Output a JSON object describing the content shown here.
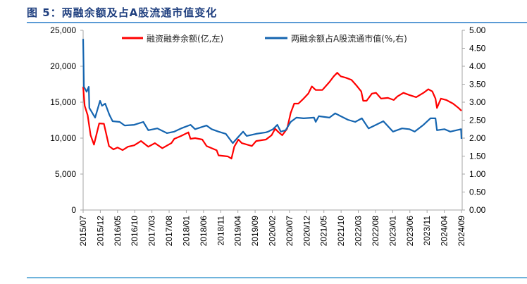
{
  "title": "图 5：两融余额及占A股流通市值变化",
  "colors": {
    "red": "#ff0000",
    "blue": "#1565b0",
    "title": "#1f3f7f",
    "axis": "#a6a6a6"
  },
  "chart_data": {
    "type": "line",
    "title": "图 5：两融余额及占A股流通市值变化",
    "xlabel": "",
    "x_range": [
      "2015-07-01",
      "2024-09-01"
    ],
    "x_ticks": [
      "2015/07",
      "2015/12",
      "2016/05",
      "2016/10",
      "2017/03",
      "2017/08",
      "2018/01",
      "2018/06",
      "2018/11",
      "2019/04",
      "2019/09",
      "2020/02",
      "2020/07",
      "2020/12",
      "2021/05",
      "2021/10",
      "2022/03",
      "2022/08",
      "2023/01",
      "2023/06",
      "2023/11",
      "2024/04",
      "2024/09"
    ],
    "y_left": {
      "ylim": [
        0,
        25000
      ],
      "ticks": [
        "0",
        "5,000",
        "10,000",
        "15,000",
        "20,000",
        "25,000"
      ]
    },
    "y_right": {
      "ylim": [
        0,
        5
      ],
      "ticks": [
        "0.00",
        "0.50",
        "1.00",
        "1.50",
        "2.00",
        "2.50",
        "3.00",
        "3.50",
        "4.00",
        "4.50",
        "5.00"
      ]
    },
    "grid": false,
    "legend_position": "top",
    "series": [
      {
        "name": "融资融券余额(亿,左)",
        "axis": "left",
        "color": "#ff0000",
        "points": [
          [
            "2015-07-01",
            17150
          ],
          [
            "2015-07-15",
            14500
          ],
          [
            "2015-08-10",
            13200
          ],
          [
            "2015-09-05",
            10400
          ],
          [
            "2015-10-05",
            9100
          ],
          [
            "2015-11-20",
            12050
          ],
          [
            "2016-01-01",
            12000
          ],
          [
            "2016-02-15",
            8900
          ],
          [
            "2016-03-25",
            8430
          ],
          [
            "2016-05-01",
            8700
          ],
          [
            "2016-06-15",
            8330
          ],
          [
            "2016-08-01",
            8800
          ],
          [
            "2016-09-25",
            9000
          ],
          [
            "2016-11-25",
            9600
          ],
          [
            "2017-01-28",
            8800
          ],
          [
            "2017-03-28",
            9300
          ],
          [
            "2017-06-01",
            8600
          ],
          [
            "2017-08-20",
            9300
          ],
          [
            "2017-09-15",
            9900
          ],
          [
            "2017-11-15",
            10300
          ],
          [
            "2018-01-18",
            10800
          ],
          [
            "2018-02-06",
            9900
          ],
          [
            "2018-03-18",
            10000
          ],
          [
            "2018-05-21",
            9800
          ],
          [
            "2018-06-28",
            8900
          ],
          [
            "2018-09-25",
            8300
          ],
          [
            "2018-10-12",
            7600
          ],
          [
            "2019-01-03",
            7450
          ],
          [
            "2019-02-03",
            7150
          ],
          [
            "2019-02-28",
            8800
          ],
          [
            "2019-04-06",
            9800
          ],
          [
            "2019-05-06",
            9300
          ],
          [
            "2019-08-03",
            8900
          ],
          [
            "2019-09-10",
            9600
          ],
          [
            "2019-12-06",
            9800
          ],
          [
            "2020-01-25",
            10400
          ],
          [
            "2020-02-25",
            11300
          ],
          [
            "2020-03-28",
            10800
          ],
          [
            "2020-04-28",
            10400
          ],
          [
            "2020-06-10",
            11300
          ],
          [
            "2020-07-12",
            13500
          ],
          [
            "2020-08-12",
            14800
          ],
          [
            "2020-09-18",
            14800
          ],
          [
            "2020-11-03",
            15500
          ],
          [
            "2020-12-15",
            16200
          ],
          [
            "2021-01-15",
            17200
          ],
          [
            "2021-02-18",
            16700
          ],
          [
            "2021-04-18",
            16700
          ],
          [
            "2021-06-20",
            17800
          ],
          [
            "2021-07-28",
            18600
          ],
          [
            "2021-08-28",
            19100
          ],
          [
            "2021-09-28",
            18600
          ],
          [
            "2021-11-12",
            18400
          ],
          [
            "2022-01-01",
            18100
          ],
          [
            "2022-02-15",
            17300
          ],
          [
            "2022-03-28",
            16500
          ],
          [
            "2022-04-15",
            15200
          ],
          [
            "2022-05-15",
            15200
          ],
          [
            "2022-07-01",
            16200
          ],
          [
            "2022-08-06",
            16300
          ],
          [
            "2022-09-20",
            15500
          ],
          [
            "2022-11-20",
            15600
          ],
          [
            "2023-01-10",
            15300
          ],
          [
            "2023-02-12",
            15800
          ],
          [
            "2023-04-06",
            16300
          ],
          [
            "2023-05-28",
            16000
          ],
          [
            "2023-07-28",
            15700
          ],
          [
            "2023-10-01",
            16300
          ],
          [
            "2023-11-12",
            16800
          ],
          [
            "2023-12-18",
            16500
          ],
          [
            "2024-01-15",
            15500
          ],
          [
            "2024-01-28",
            14200
          ],
          [
            "2024-03-03",
            15500
          ],
          [
            "2024-04-20",
            15300
          ],
          [
            "2024-06-18",
            14800
          ],
          [
            "2024-08-06",
            14200
          ],
          [
            "2024-09-01",
            13800
          ]
        ]
      },
      {
        "name": "两融余额占A股流通市值(%,右)",
        "axis": "right",
        "color": "#1565b0",
        "points": [
          [
            "2015-07-01",
            4.76
          ],
          [
            "2015-07-08",
            3.43
          ],
          [
            "2015-08-01",
            3.29
          ],
          [
            "2015-08-20",
            3.43
          ],
          [
            "2015-08-25",
            2.84
          ],
          [
            "2015-10-15",
            2.57
          ],
          [
            "2015-11-28",
            3.04
          ],
          [
            "2015-12-15",
            2.9
          ],
          [
            "2016-01-12",
            2.96
          ],
          [
            "2016-02-18",
            2.65
          ],
          [
            "2016-03-18",
            2.47
          ],
          [
            "2016-05-20",
            2.45
          ],
          [
            "2016-07-03",
            2.35
          ],
          [
            "2016-09-25",
            2.37
          ],
          [
            "2016-12-15",
            2.45
          ],
          [
            "2017-01-28",
            2.22
          ],
          [
            "2017-04-18",
            2.27
          ],
          [
            "2017-07-12",
            2.14
          ],
          [
            "2017-09-15",
            2.18
          ],
          [
            "2017-11-15",
            2.27
          ],
          [
            "2018-02-06",
            2.37
          ],
          [
            "2018-03-18",
            2.25
          ],
          [
            "2018-06-28",
            2.35
          ],
          [
            "2018-08-12",
            2.25
          ],
          [
            "2018-10-12",
            2.18
          ],
          [
            "2018-12-15",
            2.12
          ],
          [
            "2019-02-15",
            1.86
          ],
          [
            "2019-04-01",
            2.02
          ],
          [
            "2019-05-18",
            2.18
          ],
          [
            "2019-06-18",
            2.06
          ],
          [
            "2019-09-10",
            2.12
          ],
          [
            "2019-12-06",
            2.16
          ],
          [
            "2019-12-25",
            2.18
          ],
          [
            "2020-02-06",
            2.25
          ],
          [
            "2020-03-15",
            2.37
          ],
          [
            "2020-04-15",
            2.18
          ],
          [
            "2020-05-28",
            2.22
          ],
          [
            "2020-07-12",
            2.45
          ],
          [
            "2020-09-01",
            2.57
          ],
          [
            "2020-11-03",
            2.55
          ],
          [
            "2021-02-03",
            2.57
          ],
          [
            "2021-02-18",
            2.45
          ],
          [
            "2021-03-18",
            2.61
          ],
          [
            "2021-06-20",
            2.57
          ],
          [
            "2021-08-10",
            2.69
          ],
          [
            "2021-09-28",
            2.61
          ],
          [
            "2021-12-01",
            2.51
          ],
          [
            "2022-02-03",
            2.45
          ],
          [
            "2022-04-03",
            2.55
          ],
          [
            "2022-06-01",
            2.27
          ],
          [
            "2022-08-06",
            2.37
          ],
          [
            "2022-10-10",
            2.47
          ],
          [
            "2023-01-03",
            2.18
          ],
          [
            "2023-03-25",
            2.27
          ],
          [
            "2023-05-28",
            2.25
          ],
          [
            "2023-07-15",
            2.18
          ],
          [
            "2023-10-01",
            2.37
          ],
          [
            "2023-12-01",
            2.55
          ],
          [
            "2024-01-15",
            2.55
          ],
          [
            "2024-01-28",
            2.22
          ],
          [
            "2024-04-03",
            2.25
          ],
          [
            "2024-05-25",
            2.18
          ],
          [
            "2024-08-28",
            2.25
          ],
          [
            "2024-09-01",
            1.98
          ]
        ]
      }
    ]
  }
}
